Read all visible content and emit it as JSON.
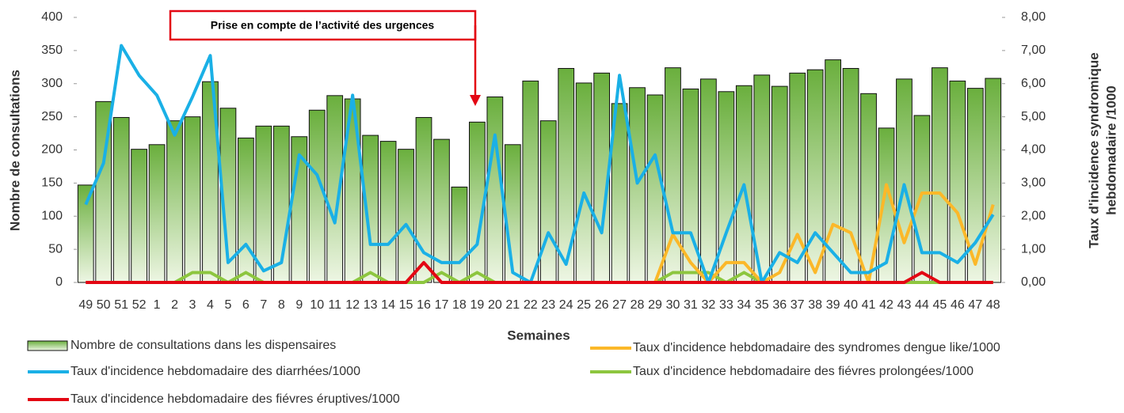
{
  "chart_data": {
    "type": "bar-line",
    "annotation": "Prise en compte de l’activité des urgences",
    "xlabel": "Semaines",
    "ylabel": "Nombre de consultations",
    "y2label": [
      "Taux d'incidence syndromique",
      "hebdomadaire /1000"
    ],
    "categories": [
      "49",
      "50",
      "51",
      "52",
      "1",
      "2",
      "3",
      "4",
      "5",
      "6",
      "7",
      "8",
      "9",
      "10",
      "11",
      "12",
      "13",
      "14",
      "15",
      "16",
      "17",
      "18",
      "19",
      "20",
      "21",
      "22",
      "23",
      "24",
      "25",
      "26",
      "27",
      "28",
      "29",
      "30",
      "31",
      "32",
      "33",
      "34",
      "35",
      "36",
      "37",
      "38",
      "39",
      "40",
      "41",
      "42",
      "43",
      "44",
      "45",
      "46",
      "47",
      "48"
    ],
    "ylim": [
      0,
      400
    ],
    "yticks": [
      0,
      50,
      100,
      150,
      200,
      250,
      300,
      350,
      400
    ],
    "y2lim": [
      0,
      8
    ],
    "y2ticks": [
      {
        "value": 0,
        "label": "0,00"
      },
      {
        "value": 1,
        "label": "1,00"
      },
      {
        "value": 2,
        "label": "2,00"
      },
      {
        "value": 3,
        "label": "3,00"
      },
      {
        "value": 4,
        "label": "4,00"
      },
      {
        "value": 5,
        "label": "5,00"
      },
      {
        "value": 6,
        "label": "6,00"
      },
      {
        "value": 7,
        "label": "7,00"
      },
      {
        "value": 8,
        "label": "8,00"
      }
    ],
    "series": [
      {
        "name": "Nombre de consultations dans les dispensaires",
        "type": "bar",
        "color": "#70ad47",
        "values": [
          147,
          273,
          249,
          201,
          208,
          244,
          250,
          303,
          263,
          218,
          236,
          236,
          220,
          260,
          282,
          277,
          222,
          213,
          201,
          249,
          216,
          144,
          242,
          280,
          208,
          304,
          244,
          323,
          301,
          316,
          270,
          294,
          283,
          324,
          292,
          307,
          288,
          297,
          313,
          296,
          316,
          321,
          336,
          323,
          285,
          233,
          307,
          252,
          324,
          304,
          293,
          308
        ]
      },
      {
        "name": "Taux d'incidence hebdomadaire des fiévres prolongées/1000",
        "type": "line",
        "axis": "y2",
        "color": "#8dc63f",
        "values": [
          null,
          null,
          null,
          null,
          null,
          0,
          0.3,
          0.3,
          0,
          0.3,
          0,
          0,
          0,
          0,
          0,
          0,
          0.3,
          0,
          0,
          0,
          0.3,
          0,
          0.3,
          0,
          0,
          0,
          0,
          0,
          0,
          0,
          0,
          0,
          0,
          0.3,
          0.3,
          0.3,
          0,
          0.3,
          0,
          0,
          0,
          0,
          0,
          0,
          0,
          0,
          0,
          0,
          0,
          0,
          0,
          0
        ]
      },
      {
        "name": "Taux d'incidence hebdomadaire des syndromes dengue like/1000",
        "type": "line",
        "axis": "y2",
        "color": "#fbb829",
        "values": [
          null,
          null,
          null,
          null,
          null,
          null,
          null,
          null,
          null,
          null,
          null,
          null,
          null,
          null,
          null,
          null,
          null,
          null,
          null,
          null,
          null,
          null,
          null,
          null,
          null,
          null,
          null,
          null,
          null,
          null,
          null,
          null,
          0,
          1.45,
          0.6,
          0,
          0.6,
          0.6,
          0,
          0.3,
          1.45,
          0.3,
          1.75,
          1.5,
          0,
          2.95,
          1.2,
          2.7,
          2.7,
          2.1,
          0.55,
          2.35
        ]
      },
      {
        "name": "Taux d'incidence hebdomadaire des diarrhées/1000",
        "type": "line",
        "axis": "y2",
        "color": "#1ab0e6",
        "values": [
          2.35,
          3.6,
          7.15,
          6.25,
          5.65,
          4.45,
          5.6,
          6.85,
          0.6,
          1.15,
          0.35,
          0.6,
          3.85,
          3.25,
          1.8,
          5.65,
          1.15,
          1.15,
          1.75,
          0.9,
          0.6,
          0.6,
          1.15,
          4.45,
          0.3,
          0,
          1.5,
          0.55,
          2.7,
          1.5,
          6.25,
          3.0,
          3.85,
          1.5,
          1.5,
          0,
          1.5,
          2.95,
          0,
          0.9,
          0.6,
          1.5,
          0.9,
          0.3,
          0.3,
          0.6,
          2.95,
          0.9,
          0.9,
          0.6,
          1.2,
          2.05
        ]
      },
      {
        "name": "Taux d'incidence hebdomadaire des fiévres éruptives/1000",
        "type": "line",
        "axis": "y2",
        "color": "#e30613",
        "values": [
          0,
          0,
          0,
          0,
          0,
          0,
          0,
          0,
          0,
          0,
          0,
          0,
          0,
          0,
          0,
          0,
          0,
          0,
          0,
          0.6,
          0,
          0,
          0,
          0,
          0,
          0,
          0,
          0,
          0,
          0,
          0,
          0,
          0,
          0,
          0,
          0,
          0,
          0,
          0,
          0,
          0,
          0,
          0,
          0,
          0,
          0,
          0,
          0.3,
          0,
          0,
          0,
          0
        ]
      }
    ]
  }
}
